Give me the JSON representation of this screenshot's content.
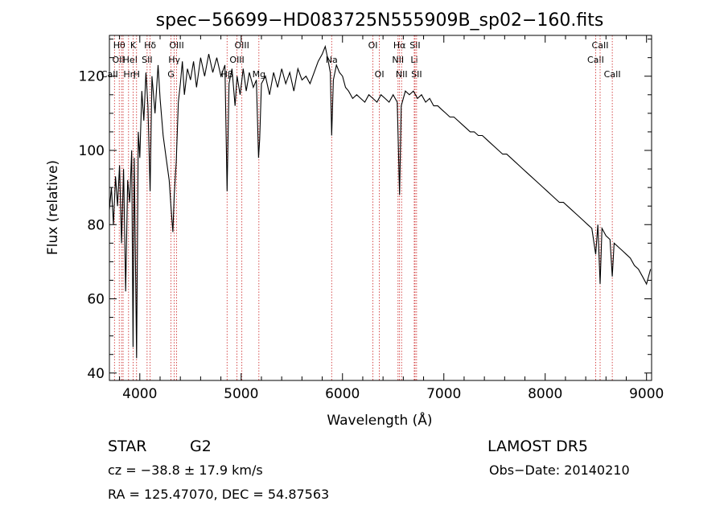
{
  "chart_data": {
    "type": "line",
    "title": "spec−56699−HD083725N555909B_sp02−160.fits",
    "xlabel": "Wavelength (Å)",
    "ylabel": "Flux (relative)",
    "xlim": [
      3700,
      9050
    ],
    "ylim": [
      38,
      131
    ],
    "x_ticks": [
      4000,
      5000,
      6000,
      7000,
      8000,
      9000
    ],
    "y_ticks": [
      40,
      60,
      80,
      100,
      120
    ],
    "grid": false,
    "series": [
      {
        "color": "#000000",
        "points": [
          [
            3700,
            84
          ],
          [
            3720,
            90
          ],
          [
            3740,
            80
          ],
          [
            3760,
            93
          ],
          [
            3780,
            85
          ],
          [
            3800,
            96
          ],
          [
            3820,
            75
          ],
          [
            3840,
            95
          ],
          [
            3860,
            62
          ],
          [
            3880,
            92
          ],
          [
            3900,
            86
          ],
          [
            3920,
            100
          ],
          [
            3933,
            47
          ],
          [
            3945,
            98
          ],
          [
            3968,
            44
          ],
          [
            3985,
            105
          ],
          [
            4000,
            98
          ],
          [
            4020,
            116
          ],
          [
            4040,
            108
          ],
          [
            4060,
            121
          ],
          [
            4080,
            112
          ],
          [
            4102,
            89
          ],
          [
            4120,
            120
          ],
          [
            4150,
            110
          ],
          [
            4180,
            123
          ],
          [
            4200,
            114
          ],
          [
            4230,
            104
          ],
          [
            4260,
            98
          ],
          [
            4290,
            92
          ],
          [
            4310,
            84
          ],
          [
            4326,
            78
          ],
          [
            4340,
            88
          ],
          [
            4360,
            97
          ],
          [
            4380,
            113
          ],
          [
            4400,
            118
          ],
          [
            4420,
            124
          ],
          [
            4440,
            115
          ],
          [
            4470,
            122
          ],
          [
            4500,
            119
          ],
          [
            4530,
            124
          ],
          [
            4560,
            117
          ],
          [
            4600,
            125
          ],
          [
            4640,
            120
          ],
          [
            4680,
            126
          ],
          [
            4720,
            121
          ],
          [
            4760,
            125
          ],
          [
            4800,
            120
          ],
          [
            4840,
            123
          ],
          [
            4861,
            89
          ],
          [
            4880,
            118
          ],
          [
            4910,
            122
          ],
          [
            4940,
            112
          ],
          [
            4960,
            120
          ],
          [
            4990,
            115
          ],
          [
            5020,
            122
          ],
          [
            5050,
            116
          ],
          [
            5080,
            121
          ],
          [
            5120,
            117
          ],
          [
            5150,
            119
          ],
          [
            5172,
            98
          ],
          [
            5183,
            103
          ],
          [
            5200,
            118
          ],
          [
            5240,
            120
          ],
          [
            5280,
            115
          ],
          [
            5320,
            121
          ],
          [
            5360,
            117
          ],
          [
            5400,
            122
          ],
          [
            5440,
            118
          ],
          [
            5480,
            121
          ],
          [
            5520,
            116
          ],
          [
            5560,
            122
          ],
          [
            5600,
            119
          ],
          [
            5640,
            120
          ],
          [
            5680,
            118
          ],
          [
            5720,
            121
          ],
          [
            5760,
            124
          ],
          [
            5800,
            126
          ],
          [
            5830,
            128
          ],
          [
            5860,
            124
          ],
          [
            5880,
            121
          ],
          [
            5893,
            104
          ],
          [
            5910,
            119
          ],
          [
            5940,
            123
          ],
          [
            5970,
            121
          ],
          [
            6000,
            120
          ],
          [
            6030,
            117
          ],
          [
            6060,
            116
          ],
          [
            6100,
            114
          ],
          [
            6140,
            115
          ],
          [
            6180,
            114
          ],
          [
            6220,
            113
          ],
          [
            6260,
            115
          ],
          [
            6300,
            114
          ],
          [
            6340,
            113
          ],
          [
            6380,
            115
          ],
          [
            6420,
            114
          ],
          [
            6460,
            113
          ],
          [
            6500,
            115
          ],
          [
            6540,
            113
          ],
          [
            6563,
            88
          ],
          [
            6580,
            112
          ],
          [
            6620,
            116
          ],
          [
            6660,
            115
          ],
          [
            6700,
            116
          ],
          [
            6740,
            114
          ],
          [
            6780,
            115
          ],
          [
            6820,
            113
          ],
          [
            6860,
            114
          ],
          [
            6900,
            112
          ],
          [
            6940,
            112
          ],
          [
            6980,
            111
          ],
          [
            7020,
            110
          ],
          [
            7060,
            109
          ],
          [
            7100,
            109
          ],
          [
            7140,
            108
          ],
          [
            7180,
            107
          ],
          [
            7220,
            106
          ],
          [
            7260,
            105
          ],
          [
            7300,
            105
          ],
          [
            7340,
            104
          ],
          [
            7380,
            104
          ],
          [
            7420,
            103
          ],
          [
            7460,
            102
          ],
          [
            7500,
            101
          ],
          [
            7540,
            100
          ],
          [
            7580,
            99
          ],
          [
            7620,
            99
          ],
          [
            7660,
            98
          ],
          [
            7700,
            97
          ],
          [
            7740,
            96
          ],
          [
            7780,
            95
          ],
          [
            7820,
            94
          ],
          [
            7860,
            93
          ],
          [
            7900,
            92
          ],
          [
            7940,
            91
          ],
          [
            7980,
            90
          ],
          [
            8020,
            89
          ],
          [
            8060,
            88
          ],
          [
            8100,
            87
          ],
          [
            8140,
            86
          ],
          [
            8180,
            86
          ],
          [
            8220,
            85
          ],
          [
            8260,
            84
          ],
          [
            8300,
            83
          ],
          [
            8340,
            82
          ],
          [
            8380,
            81
          ],
          [
            8420,
            80
          ],
          [
            8460,
            79
          ],
          [
            8498,
            72
          ],
          [
            8520,
            80
          ],
          [
            8542,
            64
          ],
          [
            8560,
            79
          ],
          [
            8600,
            77
          ],
          [
            8640,
            76
          ],
          [
            8662,
            66
          ],
          [
            8680,
            75
          ],
          [
            8720,
            74
          ],
          [
            8760,
            73
          ],
          [
            8800,
            72
          ],
          [
            8840,
            71
          ],
          [
            8880,
            69
          ],
          [
            8920,
            68
          ],
          [
            8960,
            66
          ],
          [
            9000,
            64
          ],
          [
            9040,
            68
          ]
        ]
      }
    ],
    "lines": [
      {
        "w": 3750,
        "label": "CaII",
        "row": 2,
        "shift": -6
      },
      {
        "w": 3797,
        "label": "Hθ",
        "row": 0,
        "shift": 0
      },
      {
        "w": 3820,
        "label": "OII",
        "row": 1,
        "shift": -4
      },
      {
        "w": 3835,
        "label": "Hη",
        "row": 2,
        "shift": 8
      },
      {
        "w": 3889,
        "label": "HeI",
        "row": 1,
        "shift": 2
      },
      {
        "w": 3934,
        "label": "K",
        "row": 0,
        "shift": 0
      },
      {
        "w": 3968,
        "label": "H",
        "row": 2,
        "shift": 0
      },
      {
        "w": 4072,
        "label": "SII",
        "row": 1,
        "shift": 0
      },
      {
        "w": 4102,
        "label": "Hδ",
        "row": 0,
        "shift": 0
      },
      {
        "w": 4307,
        "label": "G",
        "row": 2,
        "shift": 0
      },
      {
        "w": 4340,
        "label": "Hγ",
        "row": 1,
        "shift": 0
      },
      {
        "w": 4363,
        "label": "OIII",
        "row": 0,
        "shift": 0
      },
      {
        "w": 4861,
        "label": "Hβ",
        "row": 2,
        "shift": 0
      },
      {
        "w": 4959,
        "label": "OIII",
        "row": 1,
        "shift": 0
      },
      {
        "w": 5007,
        "label": "OIII",
        "row": 0,
        "shift": 0
      },
      {
        "w": 5175,
        "label": "Mg",
        "row": 2,
        "shift": 0
      },
      {
        "w": 5893,
        "label": "Na",
        "row": 1,
        "shift": 0
      },
      {
        "w": 6300,
        "label": "OI",
        "row": 0,
        "shift": 0
      },
      {
        "w": 6364,
        "label": "OI",
        "row": 2,
        "shift": 0
      },
      {
        "w": 6548,
        "label": "NII",
        "row": 1,
        "shift": 0
      },
      {
        "w": 6563,
        "label": "Hα",
        "row": 0,
        "shift": 0
      },
      {
        "w": 6583,
        "label": "NII",
        "row": 2,
        "shift": 0
      },
      {
        "w": 6708,
        "label": "Li",
        "row": 1,
        "shift": 0
      },
      {
        "w": 6716,
        "label": "SII",
        "row": 0,
        "shift": 0
      },
      {
        "w": 6731,
        "label": "SII",
        "row": 2,
        "shift": 0
      },
      {
        "w": 8498,
        "label": "CaII",
        "row": 1,
        "shift": 0
      },
      {
        "w": 8542,
        "label": "CaII",
        "row": 0,
        "shift": 0
      },
      {
        "w": 8662,
        "label": "CaII",
        "row": 2,
        "shift": 0
      }
    ]
  },
  "info": {
    "class": "STAR",
    "subclass": "G2",
    "survey": "LAMOST DR5",
    "cz": "cz = −38.8 ± 17.9 km/s",
    "obs_date": "Obs−Date: 20140210",
    "coords": "RA = 125.47070, DEC =  54.87563"
  }
}
